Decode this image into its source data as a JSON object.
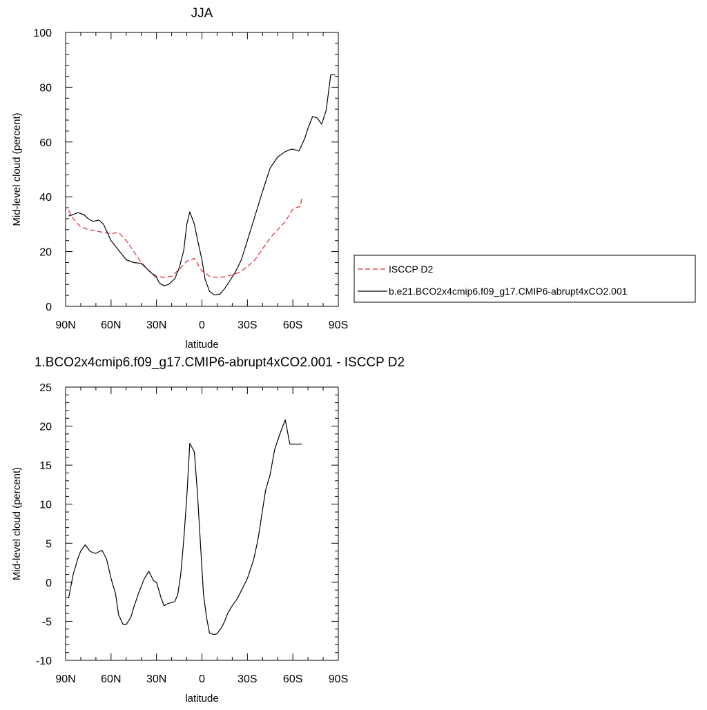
{
  "chart_data": [
    {
      "type": "line",
      "title": "JJA",
      "xlabel": "latitude",
      "ylabel": "Mid-level cloud (percent)",
      "xlim": [
        90,
        -90
      ],
      "ylim": [
        0,
        100
      ],
      "xticks": [
        90,
        60,
        30,
        0,
        -30,
        -60,
        -90
      ],
      "xtick_labels": [
        "90N",
        "60N",
        "30N",
        "0",
        "30S",
        "60S",
        "90S"
      ],
      "yticks": [
        0,
        20,
        40,
        60,
        80,
        100
      ],
      "ytick_labels": [
        "0",
        "20",
        "40",
        "60",
        "80",
        "100"
      ],
      "legend_position": "right",
      "grid": false,
      "series": [
        {
          "name": "ISCCP D2",
          "color": "#e0242a",
          "dash": "dashed",
          "x": [
            88,
            85,
            80,
            75,
            70,
            65,
            60,
            55,
            50,
            45,
            40,
            35,
            30,
            25,
            20,
            15,
            10,
            5,
            0,
            -5,
            -10,
            -15,
            -20,
            -25,
            -30,
            -35,
            -40,
            -45,
            -50,
            -55,
            -60,
            -62,
            -65,
            -66
          ],
          "y": [
            35,
            32,
            29,
            28,
            27.5,
            27,
            26.5,
            27,
            24,
            20,
            16,
            13,
            11,
            10.5,
            11,
            13.5,
            16.5,
            17.5,
            13,
            11,
            10.5,
            10.8,
            11.5,
            12.5,
            14.5,
            17,
            21,
            25,
            28,
            31,
            35.5,
            36,
            36.5,
            40
          ]
        },
        {
          "name": "b.e21.BCO2x4cmip6.f09_g17.CMIP6-abrupt4xCO2.001",
          "color": "#000000",
          "dash": "solid",
          "x": [
            88,
            85,
            82,
            78,
            75,
            72,
            68,
            65,
            60,
            55,
            50,
            45,
            40,
            35,
            33,
            30,
            28,
            25,
            22,
            18,
            15,
            12,
            10,
            8,
            5,
            3,
            0,
            -2,
            -5,
            -8,
            -12,
            -15,
            -18,
            -22,
            -26,
            -30,
            -35,
            -40,
            -45,
            -50,
            -55,
            -58,
            -60,
            -62,
            -64,
            -66,
            -68,
            -70,
            -73,
            -76,
            -79,
            -82,
            -85,
            -88
          ],
          "y": [
            33,
            33.5,
            34.2,
            33.5,
            32,
            31,
            31.5,
            30,
            24,
            20.5,
            17,
            16,
            15.7,
            13,
            12,
            10.5,
            8.5,
            7.5,
            8,
            10,
            14,
            20.5,
            30,
            34.5,
            30,
            24.5,
            17,
            10,
            5.5,
            4.2,
            4.5,
            6.5,
            9,
            12.5,
            17,
            24,
            33,
            42,
            50.5,
            54.5,
            56.5,
            57.2,
            57.4,
            57,
            56.7,
            59,
            61.5,
            65,
            69.3,
            68.8,
            66.5,
            71.5,
            84.5,
            84.5
          ]
        }
      ]
    },
    {
      "type": "line",
      "title": "1.BCO2x4cmip6.f09_g17.CMIP6-abrupt4xCO2.001 - ISCCP D2",
      "xlabel": "latitude",
      "ylabel": "Mid-level cloud (percent)",
      "xlim": [
        90,
        -90
      ],
      "ylim": [
        -10,
        25
      ],
      "xticks": [
        90,
        60,
        30,
        0,
        -30,
        -60,
        -90
      ],
      "xtick_labels": [
        "90N",
        "60N",
        "30N",
        "0",
        "30S",
        "60S",
        "90S"
      ],
      "yticks": [
        -10,
        -5,
        0,
        5,
        10,
        15,
        20,
        25
      ],
      "ytick_labels": [
        "-10",
        "-5",
        "0",
        "5",
        "10",
        "15",
        "20",
        "25"
      ],
      "grid": false,
      "series": [
        {
          "color": "#000000",
          "dash": "solid",
          "x": [
            88,
            85,
            82,
            80,
            77,
            74,
            72,
            70,
            68,
            66,
            63,
            60,
            57,
            55,
            52,
            50,
            47,
            45,
            42,
            38,
            35,
            32,
            30,
            27,
            25,
            22,
            18,
            16,
            14,
            12,
            10,
            8,
            5,
            3,
            1,
            -1,
            -3,
            -5,
            -8,
            -10,
            -13,
            -15,
            -17,
            -20,
            -23,
            -27,
            -30,
            -34,
            -37,
            -39,
            -42,
            -45,
            -48,
            -52,
            -55,
            -58,
            -60,
            -62,
            -64,
            -66
          ],
          "y": [
            -2,
            1,
            3,
            4,
            4.8,
            4,
            3.8,
            3.7,
            3.9,
            4.1,
            3,
            0.5,
            -1.5,
            -4.2,
            -5.4,
            -5.4,
            -4.5,
            -3.2,
            -1.5,
            0.5,
            1.4,
            0.2,
            0,
            -2,
            -3,
            -2.7,
            -2.5,
            -1.6,
            1,
            5.5,
            11,
            17.8,
            16.7,
            11.5,
            5,
            -1.5,
            -4.5,
            -6.5,
            -6.7,
            -6.6,
            -5.8,
            -5,
            -4,
            -3,
            -2.2,
            -0.7,
            0.5,
            2.8,
            5.5,
            8,
            11.8,
            13.8,
            17,
            19.3,
            20.8,
            17.7,
            17.7,
            17.7,
            17.7,
            17.7
          ]
        }
      ]
    }
  ]
}
